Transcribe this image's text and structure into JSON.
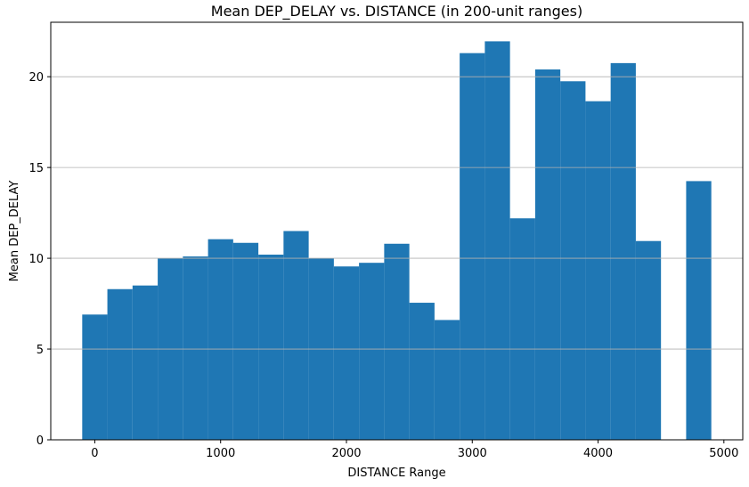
{
  "chart_data": {
    "type": "bar",
    "title": "Mean DEP_DELAY vs. DISTANCE (in 200-unit ranges)",
    "xlabel": "DISTANCE Range",
    "ylabel": "Mean DEP_DELAY",
    "bin_width": 200,
    "x": [
      0,
      200,
      400,
      600,
      800,
      1000,
      1200,
      1400,
      1600,
      1800,
      2000,
      2200,
      2400,
      2600,
      2800,
      3000,
      3200,
      3400,
      3600,
      3800,
      4000,
      4200,
      4400,
      4800
    ],
    "values": [
      6.9,
      8.3,
      8.5,
      10.0,
      10.1,
      11.05,
      10.85,
      10.2,
      11.5,
      10.0,
      9.55,
      9.75,
      10.8,
      7.55,
      6.6,
      21.3,
      21.95,
      12.2,
      20.4,
      19.75,
      18.65,
      20.75,
      10.95,
      14.25
    ],
    "xlim": [
      -350,
      5150
    ],
    "ylim": [
      0,
      23
    ],
    "xticks": [
      0,
      1000,
      2000,
      3000,
      4000,
      5000
    ],
    "yticks": [
      0,
      5,
      10,
      15,
      20
    ],
    "grid": "y",
    "color": "#1f77b4"
  }
}
